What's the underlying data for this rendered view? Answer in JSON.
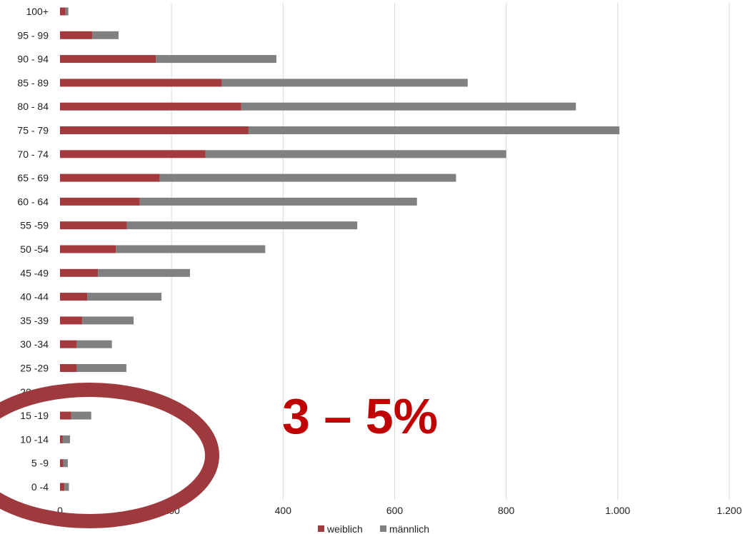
{
  "chart_data": {
    "type": "bar",
    "orientation": "horizontal",
    "stacked": true,
    "categories": [
      "100+",
      "95 - 99",
      "90 - 94",
      "85 - 89",
      "80 - 84",
      "75 - 79",
      "70 - 74",
      "65 - 69",
      "60 - 64",
      "55 -59",
      "50 -54",
      "45 -49",
      "40 -44",
      "35 -39",
      "30 -34",
      "25 -29",
      "20 -24",
      "15 -19",
      "10 -14",
      "5 -9",
      "0 -4"
    ],
    "series": [
      {
        "name": "weiblich",
        "color": "#a33b3e",
        "values": [
          10,
          58,
          172,
          290,
          325,
          338,
          261,
          179,
          143,
          120,
          100,
          68,
          49,
          40,
          30,
          30,
          0,
          20,
          5,
          6,
          8
        ]
      },
      {
        "name": "männlich",
        "color": "#808080",
        "values": [
          5,
          47,
          216,
          441,
          600,
          665,
          539,
          531,
          497,
          413,
          268,
          165,
          133,
          92,
          63,
          89,
          0,
          36,
          13,
          8,
          8
        ]
      }
    ],
    "xticks": [
      "0",
      "200",
      "400",
      "600",
      "800",
      "1.000",
      "1.200"
    ],
    "xlim": [
      0,
      1200
    ],
    "grid": true,
    "legend": "bottom",
    "annotation": "3 – 5%",
    "highlight_color": "#9e3a3e"
  }
}
